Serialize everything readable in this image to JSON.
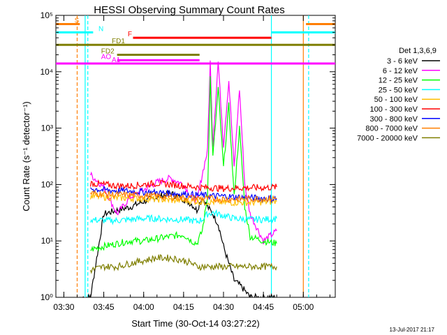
{
  "chart_data": {
    "type": "line",
    "title": "HESSI Observing Summary Count Rates",
    "xlabel": "Start Time (30-Oct-14 03:27:22)",
    "ylabel": "Count Rate (s⁻¹ detector⁻¹)",
    "y_scale": "log",
    "ylim": [
      1,
      100000
    ],
    "xlim": [
      "03:27",
      "05:12"
    ],
    "x_ticks": [
      "03:30",
      "03:45",
      "04:00",
      "04:15",
      "04:30",
      "04:45",
      "05:00"
    ],
    "y_ticks": [
      "10⁰",
      "10¹",
      "10²",
      "10³",
      "10⁴",
      "10⁵"
    ],
    "legend_title": "Det 1,3,6,9",
    "legend_position": "right",
    "series": [
      {
        "name": "3 - 6 keV",
        "color": "#000000",
        "x": [
          "03:37",
          "03:38",
          "03:40",
          "03:45",
          "03:50",
          "03:55",
          "04:00",
          "04:05",
          "04:10",
          "04:15",
          "04:18",
          "04:20",
          "04:22",
          "04:24",
          "04:26",
          "04:28",
          "04:30",
          "04:32",
          "04:34",
          "04:37",
          "04:40",
          "04:45",
          "04:50"
        ],
        "y": [
          1,
          1,
          1,
          30,
          35,
          40,
          50,
          60,
          70,
          55,
          45,
          35,
          60,
          40,
          30,
          20,
          8,
          4,
          2,
          1.5,
          1,
          1,
          1
        ]
      },
      {
        "name": "6 - 12 keV",
        "color": "#ff00ff",
        "x": [
          "03:40",
          "03:45",
          "03:50",
          "03:55",
          "04:00",
          "04:05",
          "04:10",
          "04:15",
          "04:18",
          "04:20",
          "04:22",
          "04:24",
          "04:25",
          "04:26",
          "04:28",
          "04:30",
          "04:32",
          "04:34",
          "04:36",
          "04:38",
          "04:40",
          "04:45",
          "04:50"
        ],
        "y": [
          150,
          90,
          30,
          60,
          80,
          110,
          130,
          100,
          60,
          50,
          150,
          400,
          15000,
          500,
          15000,
          500,
          7000,
          200,
          5000,
          100,
          30,
          10,
          15
        ]
      },
      {
        "name": "12 - 25 keV",
        "color": "#00ff00",
        "x": [
          "03:40",
          "03:45",
          "03:50",
          "03:55",
          "04:00",
          "04:05",
          "04:10",
          "04:15",
          "04:18",
          "04:20",
          "04:22",
          "04:24",
          "04:25",
          "04:26",
          "04:28",
          "04:30",
          "04:32",
          "04:34",
          "04:36",
          "04:38",
          "04:40",
          "04:45",
          "04:50"
        ],
        "y": [
          7,
          8,
          9,
          10,
          10,
          11,
          12,
          13,
          10,
          9,
          15,
          60,
          8000,
          300,
          5000,
          200,
          2500,
          60,
          1000,
          40,
          12,
          10,
          9
        ]
      },
      {
        "name": "25 - 50 keV",
        "color": "#00ffff",
        "x": [
          "03:40",
          "03:45",
          "03:50",
          "03:55",
          "04:00",
          "04:05",
          "04:10",
          "04:15",
          "04:18",
          "04:20",
          "04:22",
          "04:24",
          "04:26",
          "04:28",
          "04:30",
          "04:34",
          "04:40",
          "04:45",
          "04:50"
        ],
        "y": [
          24,
          23,
          23,
          24,
          25,
          25,
          24,
          24,
          23,
          22,
          24,
          30,
          32,
          30,
          28,
          25,
          24,
          24,
          25
        ]
      },
      {
        "name": "50 - 100 keV",
        "color": "#ffbf00",
        "x": [
          "03:40",
          "03:45",
          "03:50",
          "03:55",
          "04:00",
          "04:05",
          "04:10",
          "04:15",
          "04:20",
          "04:25",
          "04:30",
          "04:35",
          "04:40",
          "04:45",
          "04:50"
        ],
        "y": [
          62,
          60,
          58,
          57,
          56,
          55,
          53,
          52,
          50,
          49,
          48,
          48,
          48,
          49,
          50
        ]
      },
      {
        "name": "100 - 300 keV",
        "color": "#ff0000",
        "x": [
          "03:40",
          "03:45",
          "03:50",
          "03:55",
          "04:00",
          "04:05",
          "04:10",
          "04:15",
          "04:20",
          "04:25",
          "04:30",
          "04:35",
          "04:40",
          "04:45",
          "04:50"
        ],
        "y": [
          105,
          100,
          95,
          95,
          100,
          105,
          100,
          95,
          90,
          88,
          85,
          87,
          88,
          88,
          90
        ]
      },
      {
        "name": "300 - 800 keV",
        "color": "#0000ff",
        "x": [
          "03:40",
          "03:45",
          "03:50",
          "03:55",
          "04:00",
          "04:05",
          "04:10",
          "04:15",
          "04:20",
          "04:25",
          "04:30",
          "04:35",
          "04:40",
          "04:45",
          "04:50"
        ],
        "y": [
          85,
          80,
          78,
          76,
          74,
          72,
          70,
          68,
          65,
          63,
          62,
          60,
          58,
          57,
          56
        ]
      },
      {
        "name": "800 - 7000 keV",
        "color": "#ff7f00",
        "x": [
          "03:40",
          "03:45",
          "03:50",
          "03:55",
          "04:00",
          "04:05",
          "04:10",
          "04:15",
          "04:20",
          "04:25",
          "04:30",
          "04:35",
          "04:40",
          "04:45",
          "04:50"
        ],
        "y": [
          70,
          68,
          66,
          65,
          64,
          62,
          60,
          58,
          57,
          56,
          55,
          55,
          56,
          56,
          57
        ]
      },
      {
        "name": "7000 - 20000 keV",
        "color": "#7f7f00",
        "x": [
          "03:40",
          "03:45",
          "03:50",
          "03:55",
          "04:00",
          "04:05",
          "04:10",
          "04:15",
          "04:18",
          "04:20",
          "04:25",
          "04:30",
          "04:35",
          "04:40",
          "04:45",
          "04:50"
        ],
        "y": [
          3,
          3.5,
          3.5,
          4,
          4.5,
          5,
          5,
          4.5,
          4,
          3.5,
          3.5,
          3.5,
          3.5,
          3.5,
          3.5,
          3.5
        ]
      }
    ],
    "flags": [
      {
        "label": "S",
        "color": "#ff7f00",
        "x_start": "03:27",
        "x_end": "03:36",
        "level": 70000,
        "label_at": "03:34"
      },
      {
        "label": "S",
        "color": "#ff7f00",
        "x_start": "05:01",
        "x_end": "05:12",
        "level": 70000,
        "label_at": null
      },
      {
        "label": "N",
        "color": "#00ffff",
        "x_start": "03:27",
        "x_end": "03:41",
        "level": 50000,
        "label_at": "03:43"
      },
      {
        "label": "N",
        "color": "#00ffff",
        "x_start": "04:48",
        "x_end": "05:12",
        "level": 50000,
        "label_at": null
      },
      {
        "label": "F",
        "color": "#ff0000",
        "x_start": "03:56",
        "x_end": "04:48",
        "level": 40000,
        "label_at": "03:54"
      },
      {
        "label": "FD1",
        "color": "#7f7f00",
        "x_start": "03:27",
        "x_end": "05:12",
        "level": 30000,
        "label_at": "03:48"
      },
      {
        "label": "FD2",
        "color": "#7f7f00",
        "x_start": "03:50",
        "x_end": "04:21",
        "level": 20000,
        "label_at": "03:44"
      },
      {
        "label": "AO",
        "color": "#ff00ff",
        "x_start": "03:50",
        "x_end": "04:21",
        "level": 16000,
        "label_at": "03:44"
      },
      {
        "label": "A1",
        "color": "#ff00ff",
        "x_start": "03:27",
        "x_end": "05:12",
        "level": 14000,
        "label_at": "03:48"
      }
    ],
    "vertical_markers": [
      {
        "x": "03:35",
        "color": "#ff7f00",
        "style": "dashed"
      },
      {
        "x": "03:38",
        "color": "#00ffff",
        "style": "solid"
      },
      {
        "x": "03:39",
        "color": "#00ffff",
        "style": "dashed"
      },
      {
        "x": "04:48",
        "color": "#00ffff",
        "style": "solid"
      },
      {
        "x": "05:00",
        "color": "#ff7f00",
        "style": "solid"
      },
      {
        "x": "05:02",
        "color": "#00ffff",
        "style": "dashed"
      }
    ],
    "timestamp": "13-Jul-2017 21:17"
  }
}
